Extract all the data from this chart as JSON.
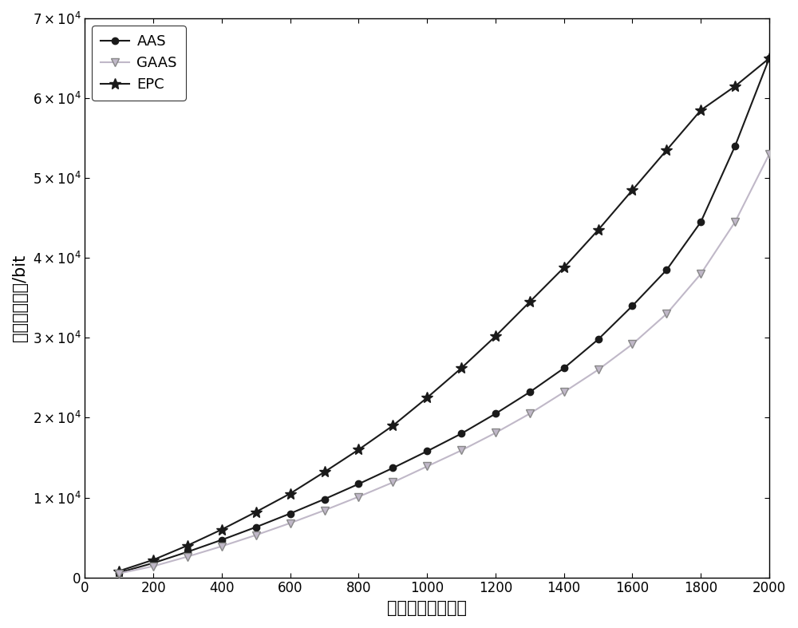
{
  "x": [
    100,
    200,
    300,
    400,
    500,
    600,
    700,
    800,
    900,
    1000,
    1100,
    1200,
    1300,
    1400,
    1500,
    1600,
    1700,
    1800,
    1900,
    2000
  ],
  "AAS": [
    600,
    1800,
    3200,
    4700,
    6300,
    8000,
    9800,
    11700,
    13700,
    15800,
    18000,
    20500,
    23200,
    26200,
    29800,
    34000,
    38500,
    44500,
    54000,
    65000
  ],
  "GAAS": [
    500,
    1400,
    2600,
    3900,
    5300,
    6800,
    8400,
    10100,
    11900,
    13900,
    15900,
    18100,
    20500,
    23200,
    26000,
    29200,
    33000,
    38000,
    44500,
    53000
  ],
  "EPC": [
    800,
    2200,
    4000,
    6000,
    8200,
    10500,
    13200,
    16000,
    19000,
    22500,
    26200,
    30200,
    34500,
    38800,
    43500,
    48500,
    53500,
    58500,
    61500,
    65000
  ],
  "AAS_color": "#1a1a1a",
  "GAAS_color": "#c0b8c8",
  "EPC_color": "#1a1a1a",
  "AAS_marker_color": "#1a1a1a",
  "GAAS_marker_color": "#c0b8c8",
  "EPC_marker_color": "#1a1a1a",
  "xlabel": "待识别标签的数目",
  "ylabel": "阅读器的开销/bit",
  "xlim": [
    0,
    2000
  ],
  "ylim": [
    0,
    70000
  ],
  "xticks": [
    0,
    200,
    400,
    600,
    800,
    1000,
    1200,
    1400,
    1600,
    1800,
    2000
  ],
  "ytick_vals": [
    0,
    10000,
    20000,
    30000,
    40000,
    50000,
    60000,
    70000
  ],
  "legend_labels": [
    "AAS",
    "GAAS",
    "EPC"
  ],
  "label_fontsize": 15,
  "tick_fontsize": 12,
  "legend_fontsize": 13
}
